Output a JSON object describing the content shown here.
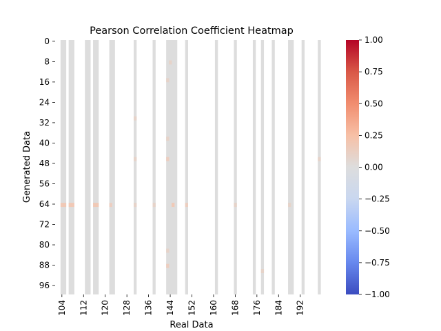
{
  "chart_data": {
    "type": "heatmap",
    "title": "Pearson Correlation Coefficient Heatmap",
    "xlabel": "Real Data",
    "ylabel": "Generated Data",
    "x_range": [
      102,
      203
    ],
    "y_range": [
      0,
      100
    ],
    "x_ticks": [
      "104",
      "112",
      "120",
      "128",
      "136",
      "144",
      "152",
      "160",
      "168",
      "176",
      "184",
      "192"
    ],
    "y_ticks": [
      "0",
      "8",
      "16",
      "24",
      "32",
      "40",
      "48",
      "56",
      "64",
      "72",
      "80",
      "88",
      "96"
    ],
    "columns_with_values": [
      {
        "x": 104,
        "value": 0.0
      },
      {
        "x": 105,
        "value": 0.0
      },
      {
        "x": 107,
        "value": 0.0
      },
      {
        "x": 108,
        "value": 0.0
      },
      {
        "x": 113,
        "value": 0.0
      },
      {
        "x": 114,
        "value": 0.0
      },
      {
        "x": 116,
        "value": 0.0
      },
      {
        "x": 117,
        "value": 0.0
      },
      {
        "x": 122,
        "value": 0.0
      },
      {
        "x": 123,
        "value": 0.0
      },
      {
        "x": 131,
        "value": 0.0
      },
      {
        "x": 138,
        "value": 0.0
      },
      {
        "x": 143,
        "value": 0.0
      },
      {
        "x": 144,
        "value": 0.0
      },
      {
        "x": 145,
        "value": 0.0
      },
      {
        "x": 146,
        "value": 0.0
      },
      {
        "x": 150,
        "value": 0.0
      },
      {
        "x": 161,
        "value": 0.0
      },
      {
        "x": 168,
        "value": 0.0
      },
      {
        "x": 175,
        "value": 0.0
      },
      {
        "x": 178,
        "value": 0.0
      },
      {
        "x": 182,
        "value": 0.0
      },
      {
        "x": 188,
        "value": 0.0
      },
      {
        "x": 189,
        "value": 0.0
      },
      {
        "x": 193,
        "value": 0.0
      },
      {
        "x": 199,
        "value": 0.0
      }
    ],
    "highlight_cells": [
      {
        "x": 104,
        "y": 64,
        "value": 0.2
      },
      {
        "x": 105,
        "y": 64,
        "value": 0.2
      },
      {
        "x": 107,
        "y": 64,
        "value": 0.2
      },
      {
        "x": 108,
        "y": 64,
        "value": 0.2
      },
      {
        "x": 116,
        "y": 64,
        "value": 0.2
      },
      {
        "x": 117,
        "y": 64,
        "value": 0.2
      },
      {
        "x": 122,
        "y": 64,
        "value": 0.15
      },
      {
        "x": 131,
        "y": 64,
        "value": 0.1
      },
      {
        "x": 138,
        "y": 64,
        "value": 0.1
      },
      {
        "x": 145,
        "y": 64,
        "value": 0.2
      },
      {
        "x": 150,
        "y": 64,
        "value": 0.15
      },
      {
        "x": 168,
        "y": 64,
        "value": 0.1
      },
      {
        "x": 188,
        "y": 64,
        "value": 0.1
      },
      {
        "x": 144,
        "y": 8,
        "value": 0.1
      },
      {
        "x": 143,
        "y": 15,
        "value": 0.1
      },
      {
        "x": 131,
        "y": 30,
        "value": 0.1
      },
      {
        "x": 143,
        "y": 38,
        "value": 0.1
      },
      {
        "x": 131,
        "y": 46,
        "value": 0.1
      },
      {
        "x": 143,
        "y": 46,
        "value": 0.15
      },
      {
        "x": 199,
        "y": 46,
        "value": 0.1
      },
      {
        "x": 143,
        "y": 82,
        "value": 0.1
      },
      {
        "x": 143,
        "y": 88,
        "value": 0.15
      },
      {
        "x": 178,
        "y": 90,
        "value": 0.1
      }
    ],
    "colorbar": {
      "colormap": "coolwarm",
      "vmin": -1.0,
      "vmax": 1.0,
      "ticks": [
        "1.00",
        "0.75",
        "0.50",
        "0.25",
        "0.00",
        "−0.25",
        "−0.50",
        "−0.75",
        "−1.00"
      ],
      "colors": [
        "#3b4cc0",
        "#6788ee",
        "#9abbff",
        "#c9d7f0",
        "#dddddd",
        "#f7c0a6",
        "#f18d6f",
        "#d95847",
        "#b40426"
      ]
    },
    "grid": false,
    "legend": "none"
  }
}
